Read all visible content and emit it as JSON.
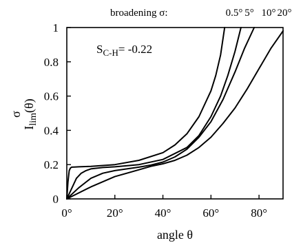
{
  "chart_data": {
    "type": "line",
    "title": "",
    "xlabel": "angle θ",
    "ylabel": {
      "main": "I",
      "sub": "lim",
      "arg": "(θ)",
      "sup": "σ"
    },
    "xlim": [
      0,
      90
    ],
    "ylim": [
      0,
      1
    ],
    "x_ticks": [
      {
        "value": 0,
        "label": "0°"
      },
      {
        "value": 20,
        "label": "20°"
      },
      {
        "value": 40,
        "label": "40°"
      },
      {
        "value": 60,
        "label": "60°"
      },
      {
        "value": 80,
        "label": "80°"
      }
    ],
    "y_ticks": [
      {
        "value": 0,
        "label": "0"
      },
      {
        "value": 0.2,
        "label": "0.2"
      },
      {
        "value": 0.4,
        "label": "0.4"
      },
      {
        "value": 0.6,
        "label": "0.6"
      },
      {
        "value": 0.8,
        "label": "0.8"
      },
      {
        "value": 1,
        "label": "1"
      }
    ],
    "annotation": {
      "main": "S",
      "sub": "C-H",
      "rest": "= -0.22"
    },
    "legend_title": "broadening σ:",
    "grid": false,
    "series": [
      {
        "name": "0.5°",
        "x": [
          0,
          0.5,
          1,
          1.5,
          2,
          3,
          5,
          10,
          20,
          30,
          40,
          45,
          50,
          55,
          60,
          62,
          64,
          65.7
        ],
        "y": [
          0,
          0.1,
          0.165,
          0.18,
          0.185,
          0.186,
          0.187,
          0.19,
          0.2,
          0.225,
          0.27,
          0.315,
          0.38,
          0.48,
          0.63,
          0.72,
          0.84,
          1.0
        ]
      },
      {
        "name": "5°",
        "x": [
          0,
          2,
          4,
          6,
          8,
          10,
          15,
          20,
          30,
          40,
          50,
          55,
          60,
          64,
          67,
          70,
          72.5
        ],
        "y": [
          0,
          0.06,
          0.12,
          0.15,
          0.165,
          0.175,
          0.183,
          0.187,
          0.2,
          0.23,
          0.3,
          0.37,
          0.48,
          0.6,
          0.72,
          0.86,
          1.0
        ]
      },
      {
        "name": "10°",
        "x": [
          0,
          5,
          10,
          15,
          20,
          25,
          30,
          35,
          40,
          45,
          50,
          55,
          60,
          65,
          70,
          74,
          78
        ],
        "y": [
          0,
          0.065,
          0.12,
          0.15,
          0.165,
          0.175,
          0.185,
          0.197,
          0.215,
          0.245,
          0.29,
          0.36,
          0.45,
          0.58,
          0.74,
          0.88,
          1.0
        ]
      },
      {
        "name": "20°",
        "x": [
          0,
          10,
          20,
          30,
          35,
          40,
          45,
          50,
          55,
          60,
          65,
          70,
          75,
          80,
          85,
          90
        ],
        "y": [
          0,
          0.07,
          0.13,
          0.17,
          0.19,
          0.205,
          0.225,
          0.255,
          0.3,
          0.36,
          0.44,
          0.53,
          0.64,
          0.76,
          0.88,
          0.98
        ]
      }
    ]
  }
}
